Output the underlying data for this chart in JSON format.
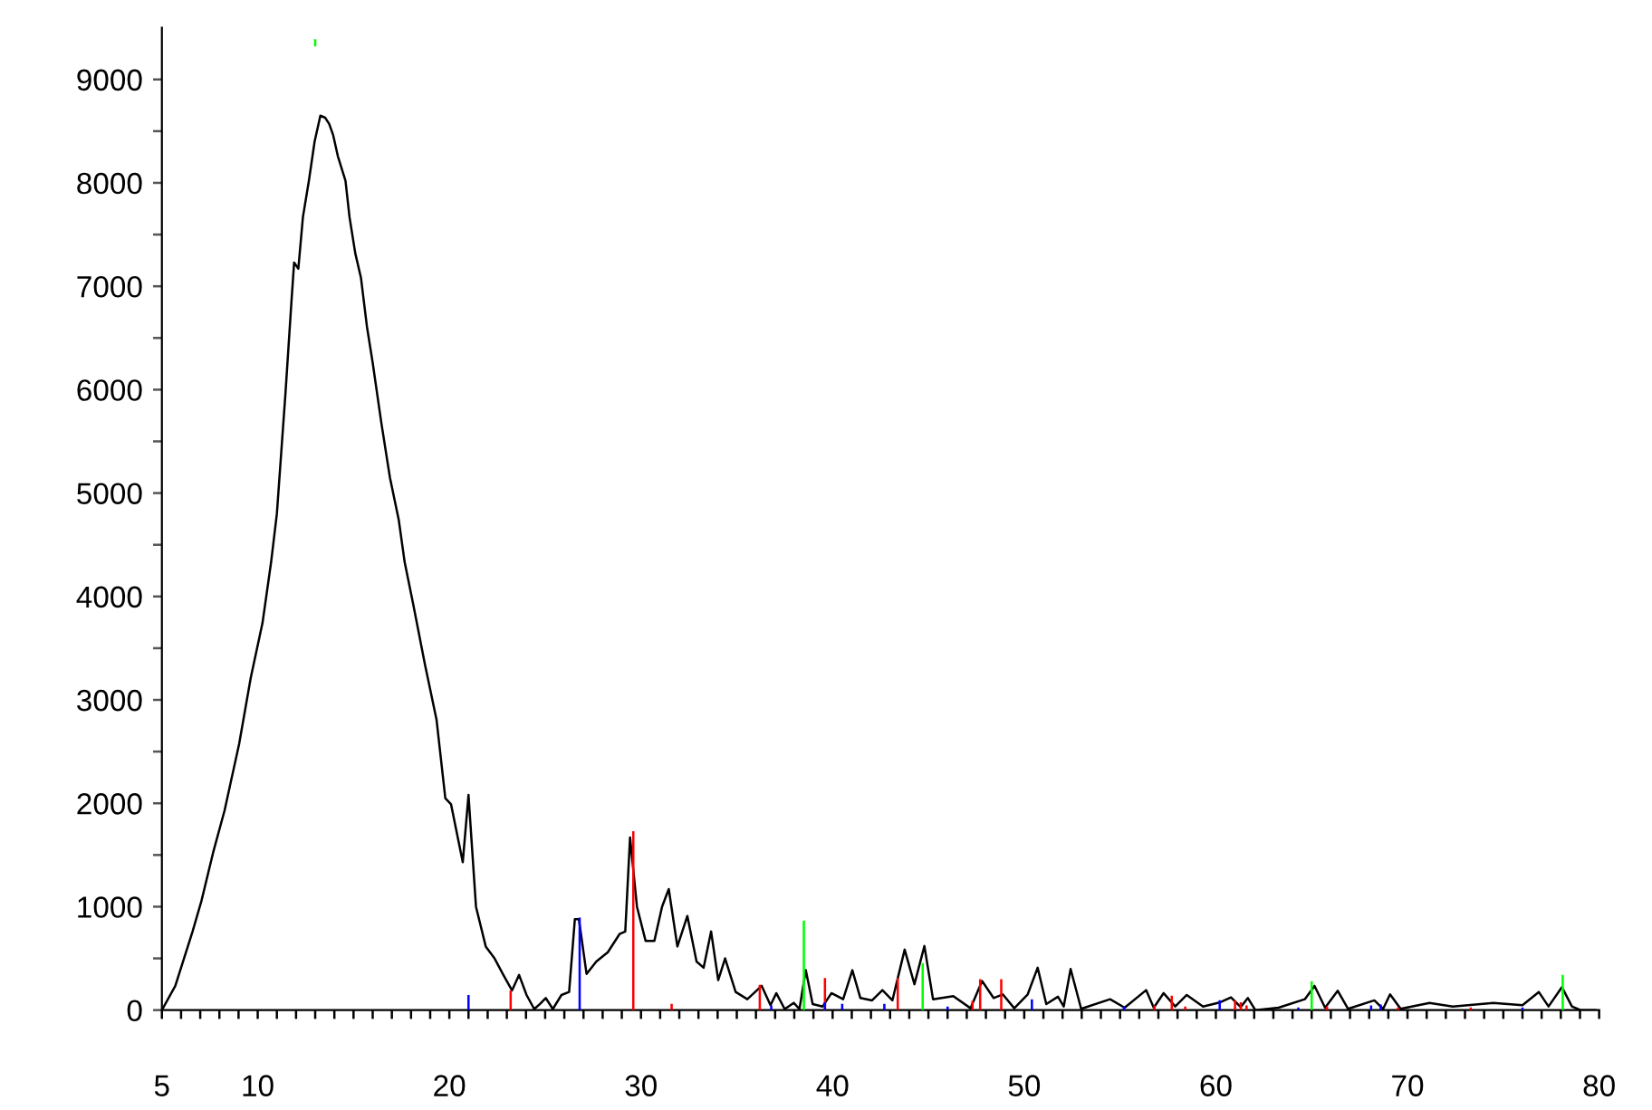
{
  "chart_data": {
    "type": "line",
    "xlim": [
      5,
      80
    ],
    "ylim": [
      0,
      9500
    ],
    "xticks": [
      5,
      {
        "value": 6,
        "label": null
      },
      {
        "value": 7,
        "label": null
      },
      {
        "value": 8,
        "label": null
      },
      {
        "value": 9,
        "label": null
      },
      10,
      {
        "value": 11,
        "label": null
      },
      {
        "value": 12,
        "label": null
      },
      {
        "value": 13,
        "label": null
      },
      {
        "value": 14,
        "label": null
      },
      {
        "value": 15,
        "label": null
      },
      {
        "value": 16,
        "label": null
      },
      {
        "value": 17,
        "label": null
      },
      {
        "value": 18,
        "label": null
      },
      {
        "value": 19,
        "label": null
      },
      20,
      {
        "value": 21,
        "label": null
      },
      {
        "value": 22,
        "label": null
      },
      {
        "value": 23,
        "label": null
      },
      {
        "value": 24,
        "label": null
      },
      {
        "value": 25,
        "label": null
      },
      {
        "value": 26,
        "label": null
      },
      {
        "value": 27,
        "label": null
      },
      {
        "value": 28,
        "label": null
      },
      {
        "value": 29,
        "label": null
      },
      30,
      {
        "value": 31,
        "label": null
      },
      {
        "value": 32,
        "label": null
      },
      {
        "value": 33,
        "label": null
      },
      {
        "value": 34,
        "label": null
      },
      {
        "value": 35,
        "label": null
      },
      {
        "value": 36,
        "label": null
      },
      {
        "value": 37,
        "label": null
      },
      {
        "value": 38,
        "label": null
      },
      {
        "value": 39,
        "label": null
      },
      40,
      {
        "value": 41,
        "label": null
      },
      {
        "value": 42,
        "label": null
      },
      {
        "value": 43,
        "label": null
      },
      {
        "value": 44,
        "label": null
      },
      {
        "value": 45,
        "label": null
      },
      {
        "value": 46,
        "label": null
      },
      {
        "value": 47,
        "label": null
      },
      {
        "value": 48,
        "label": null
      },
      {
        "value": 49,
        "label": null
      },
      50,
      {
        "value": 51,
        "label": null
      },
      {
        "value": 52,
        "label": null
      },
      {
        "value": 53,
        "label": null
      },
      {
        "value": 54,
        "label": null
      },
      {
        "value": 55,
        "label": null
      },
      {
        "value": 56,
        "label": null
      },
      {
        "value": 57,
        "label": null
      },
      {
        "value": 58,
        "label": null
      },
      {
        "value": 59,
        "label": null
      },
      60,
      {
        "value": 61,
        "label": null
      },
      {
        "value": 62,
        "label": null
      },
      {
        "value": 63,
        "label": null
      },
      {
        "value": 64,
        "label": null
      },
      {
        "value": 65,
        "label": null
      },
      {
        "value": 66,
        "label": null
      },
      {
        "value": 67,
        "label": null
      },
      {
        "value": 68,
        "label": null
      },
      {
        "value": 69,
        "label": null
      },
      70,
      {
        "value": 71,
        "label": null
      },
      {
        "value": 72,
        "label": null
      },
      {
        "value": 73,
        "label": null
      },
      {
        "value": 74,
        "label": null
      },
      {
        "value": 75,
        "label": null
      },
      {
        "value": 76,
        "label": null
      },
      {
        "value": 77,
        "label": null
      },
      {
        "value": 78,
        "label": null
      },
      {
        "value": 79,
        "label": null
      },
      80
    ],
    "yticks": [
      0,
      {
        "value": 500,
        "label": null
      },
      1000,
      {
        "value": 1500,
        "label": null
      },
      2000,
      {
        "value": 2500,
        "label": null
      },
      3000,
      {
        "value": 3500,
        "label": null
      },
      4000,
      {
        "value": 4500,
        "label": null
      },
      5000,
      {
        "value": 5500,
        "label": null
      },
      6000,
      {
        "value": 6500,
        "label": null
      },
      7000,
      {
        "value": 7500,
        "label": null
      },
      8000,
      {
        "value": 8500,
        "label": null
      },
      9000
    ],
    "grid": false,
    "legend": false,
    "marker": "none",
    "line_style": "solid",
    "series": [
      {
        "color": "#000000",
        "x": [
          5,
          5.7,
          6.6,
          7.06,
          7.67,
          8.27,
          9.03,
          9.64,
          10.25,
          10.7,
          11.0,
          11.45,
          11.76,
          11.9,
          12.12,
          12.36,
          12.67,
          12.97,
          13.27,
          13.52,
          13.73,
          13.94,
          14.18,
          14.58,
          14.79,
          15.09,
          15.39,
          15.7,
          16.0,
          16.45,
          16.9,
          17.36,
          17.67,
          18.12,
          18.73,
          19.33,
          19.79,
          20.09,
          20.7,
          21.0,
          21.39,
          21.9,
          22.36,
          22.82,
          23.27,
          23.64,
          24.03,
          24.43,
          24.73,
          25.03,
          25.4,
          25.85,
          26.25,
          26.55,
          26.76,
          27.16,
          27.67,
          28.27,
          28.88,
          29.18,
          29.43,
          29.79,
          30.24,
          30.7,
          31.1,
          31.45,
          31.9,
          32.42,
          32.9,
          33.27,
          33.66,
          34.03,
          34.39,
          34.94,
          35.55,
          36.3,
          36.76,
          37.06,
          37.5,
          37.97,
          38.27,
          38.6,
          38.96,
          39.48,
          39.94,
          40.55,
          41.03,
          41.45,
          42.06,
          42.6,
          43.12,
          43.76,
          44.27,
          44.79,
          45.24,
          46.3,
          47.2,
          47.8,
          48.4,
          48.88,
          49.48,
          50.18,
          50.7,
          51.15,
          51.76,
          52.06,
          52.42,
          52.97,
          54.48,
          55.24,
          56.36,
          56.76,
          57.27,
          57.88,
          58.48,
          59.33,
          60.24,
          60.79,
          61.3,
          61.67,
          62.06,
          63.27,
          64.64,
          65.15,
          65.7,
          66.36,
          66.9,
          68.27,
          68.73,
          69.09,
          69.64,
          71.15,
          72.36,
          74.48,
          76.0,
          76.85,
          77.36,
          78.06,
          78.58,
          79.03,
          79.8
        ],
        "values": [
          0,
          234,
          760,
          1053,
          1521,
          1930,
          2574,
          3217,
          3744,
          4333,
          4800,
          5970,
          6850,
          7230,
          7170,
          7670,
          8020,
          8400,
          8650,
          8630,
          8570,
          8460,
          8260,
          8020,
          7670,
          7320,
          7080,
          6610,
          6260,
          5680,
          5150,
          4740,
          4330,
          3920,
          3340,
          2810,
          2050,
          1990,
          1430,
          2080,
          1000,
          615,
          500,
          340,
          190,
          340,
          146,
          10,
          60,
          117,
          10,
          146,
          175,
          880,
          880,
          350,
          470,
          560,
          735,
          760,
          1670,
          1000,
          670,
          670,
          1000,
          1170,
          615,
          910,
          470,
          410,
          760,
          290,
          500,
          175,
          105,
          234,
          47,
          164,
          10,
          70,
          10,
          386,
          58,
          35,
          164,
          105,
          386,
          117,
          94,
          193,
          94,
          585,
          250,
          620,
          105,
          135,
          18,
          281,
          117,
          152,
          18,
          152,
          410,
          58,
          129,
          35,
          398,
          12,
          105,
          23,
          193,
          23,
          164,
          35,
          146,
          35,
          76,
          123,
          29,
          117,
          0,
          23,
          105,
          234,
          23,
          187,
          12,
          94,
          12,
          152,
          12,
          70,
          35,
          70,
          47,
          175,
          35,
          222,
          35,
          0,
          0
        ]
      },
      {
        "type": "bar",
        "color": "#ff0000",
        "x": [
          23.2,
          29.6,
          31.6,
          36.2,
          39.6,
          43.4,
          47.3,
          47.7,
          48.8,
          56.8,
          57.7,
          58.4,
          61.0,
          61.3,
          61.6,
          65.8,
          69.5,
          73.3
        ],
        "values": [
          190,
          1730,
          60,
          245,
          310,
          310,
          90,
          300,
          300,
          45,
          140,
          35,
          95,
          75,
          45,
          35,
          25,
          25
        ]
      },
      {
        "type": "bar",
        "color": "#0000ff",
        "x": [
          21.0,
          26.8,
          36.8,
          39.6,
          40.5,
          42.7,
          46.0,
          50.4,
          55.2,
          60.2,
          64.3,
          68.1,
          68.6,
          76.0
        ],
        "values": [
          145,
          895,
          45,
          75,
          60,
          60,
          35,
          105,
          35,
          95,
          25,
          45,
          55,
          25
        ]
      },
      {
        "type": "bar",
        "color": "#00ff00",
        "x": [
          13.0,
          38.5,
          44.7,
          65.0,
          78.1
        ],
        "base": [
          9320,
          0,
          0,
          0,
          0
        ],
        "values": [
          70,
          865,
          455,
          280,
          340
        ]
      }
    ]
  }
}
